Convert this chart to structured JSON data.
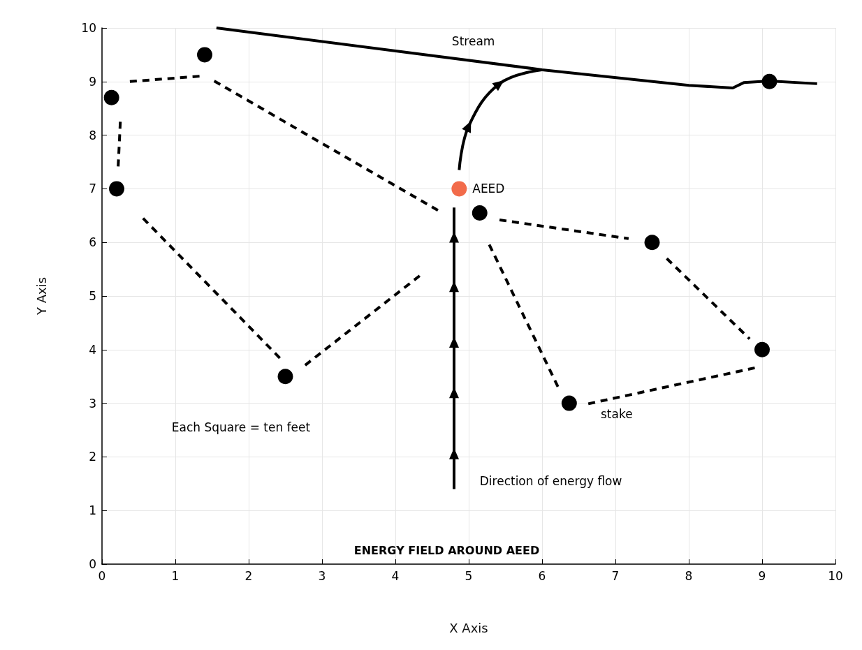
{
  "chart_data": {
    "type": "scatter",
    "title": "ENERGY FIELD AROUND AEED",
    "xlabel": "X Axis",
    "ylabel": "Y Axis",
    "xlim": [
      0,
      10
    ],
    "ylim": [
      0,
      10
    ],
    "xticks": [
      0,
      1,
      2,
      3,
      4,
      5,
      6,
      7,
      8,
      9,
      10
    ],
    "yticks": [
      0,
      1,
      2,
      3,
      4,
      5,
      6,
      7,
      8,
      9,
      10
    ],
    "grid": true,
    "series": [
      {
        "type": "line",
        "color": "#000000",
        "marker": "none",
        "line_style": "dashed",
        "x": [
          0.25,
          0.22,
          null,
          0.38,
          1.33,
          null,
          1.53,
          4.64,
          null,
          0.56,
          2.47,
          null,
          2.77,
          4.39,
          null,
          5.42,
          7.18,
          null,
          5.28,
          6.23,
          null,
          7.7,
          8.83,
          null,
          6.63,
          8.9
        ],
        "values": [
          8.25,
          7.4,
          null,
          9.0,
          9.1,
          null,
          9.01,
          6.55,
          null,
          6.45,
          3.78,
          null,
          3.71,
          5.44,
          null,
          6.42,
          6.07,
          null,
          5.96,
          3.27,
          null,
          5.7,
          4.2,
          null,
          2.99,
          3.66
        ]
      },
      {
        "type": "line",
        "color": "#000000",
        "marker": "none",
        "line_style": "solid",
        "x": [
          1.56,
          6.0,
          8.0,
          8.6,
          8.75,
          9.1,
          9.75
        ],
        "values": [
          10.0,
          9.22,
          8.93,
          8.88,
          8.98,
          9.01,
          8.96
        ]
      },
      {
        "type": "line",
        "color": "#000000",
        "marker": "triangle",
        "line_style": "solid",
        "x": [
          4.8,
          4.8,
          4.8,
          4.8,
          4.8,
          4.8,
          4.8
        ],
        "values": [
          1.4,
          2.06,
          3.2,
          4.14,
          5.18,
          6.1,
          6.65
        ]
      },
      {
        "type": "line",
        "color": "#000000",
        "marker": "triangle",
        "line_style": "solid",
        "x": [
          4.87,
          5.0,
          5.42,
          6.0
        ],
        "values": [
          7.35,
          8.17,
          8.96,
          9.22
        ]
      },
      {
        "color": "#000000",
        "marker": "circle",
        "x": [
          0.13,
          0.2,
          1.4,
          2.5,
          5.15,
          7.5,
          9.0,
          6.37,
          9.1
        ],
        "values": [
          8.7,
          7.0,
          9.5,
          3.5,
          6.55,
          6.0,
          4.0,
          3.0,
          9.0
        ]
      },
      {
        "color": "#f26b4a",
        "marker": "circle",
        "x": [
          4.87
        ],
        "values": [
          7.0
        ]
      }
    ],
    "annotations": [
      "Stream",
      "AEED",
      "stake",
      "Direction of energy flow",
      "Each Square = ten feet"
    ]
  }
}
